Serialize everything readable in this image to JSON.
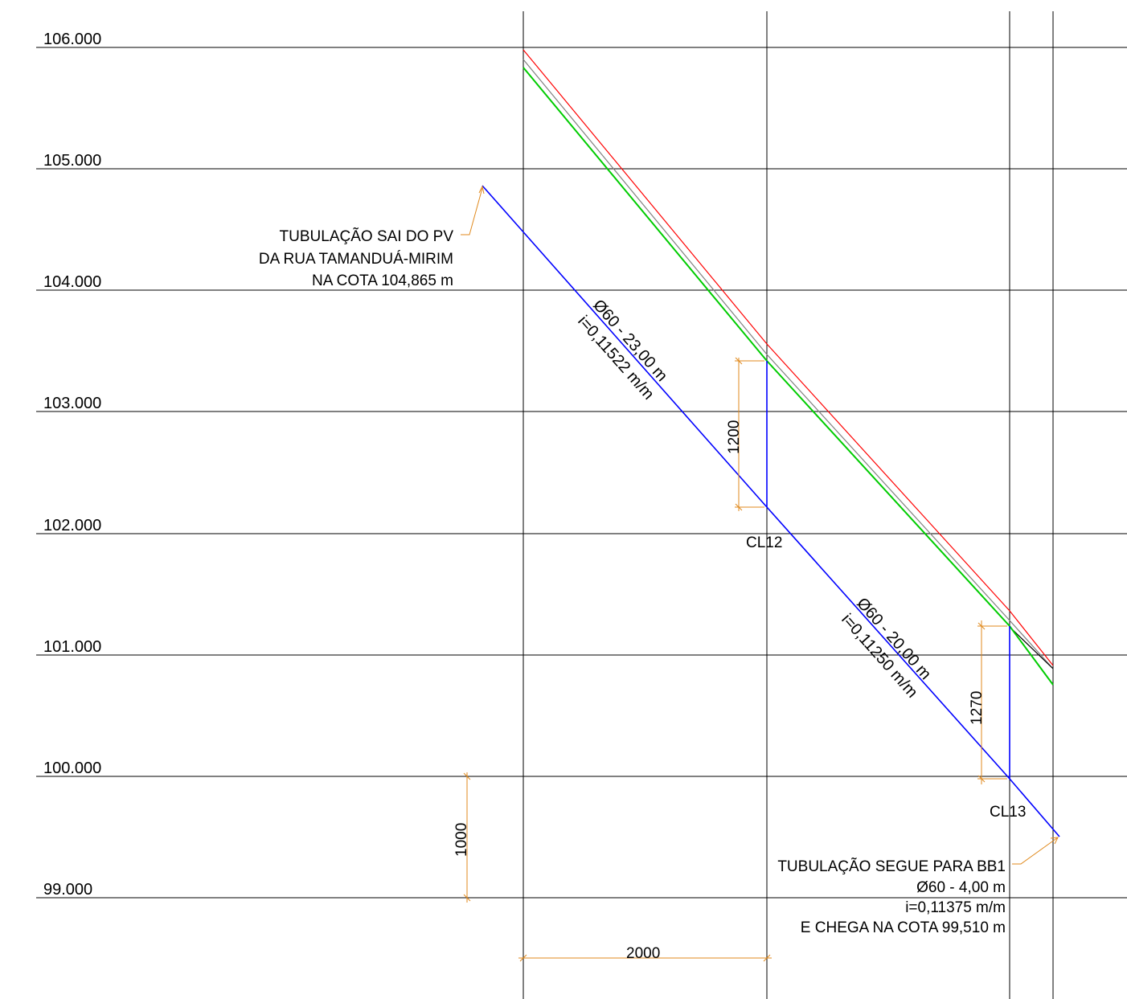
{
  "levels": {
    "l106": "106.000",
    "l105": "105.000",
    "l104": "104.000",
    "l103": "103.000",
    "l102": "102.000",
    "l101": "101.000",
    "l100": "100.000",
    "l99": "99.000"
  },
  "note_start": {
    "line1": "TUBULAÇÃO SAI DO PV",
    "line2": "DA RUA TAMANDUÁ-MIRIM",
    "line3": "NA COTA 104,865 m"
  },
  "note_end": {
    "line1": "TUBULAÇÃO SEGUE PARA BB1",
    "line2": "Ø60 - 4,00 m",
    "line3": "i=0,11375 m/m",
    "line4": "E CHEGA NA COTA 99,510 m"
  },
  "segments": {
    "seg1": {
      "diameter_length": "Ø60 - 23,00 m",
      "slope": "i=0,11522 m/m"
    },
    "seg2": {
      "diameter_length": "Ø60 - 20,00 m",
      "slope": "i=0,11250 m/m"
    }
  },
  "nodes": {
    "cl12": "CL12",
    "cl13": "CL13"
  },
  "dimensions": {
    "depth_cl12": "1200",
    "depth_cl13": "1270",
    "vertical_scale": "1000",
    "horizontal_scale": "2000"
  },
  "colors": {
    "pipe": "#0000ff",
    "terrain_red": "#ff0000",
    "terrain_gray": "#808080",
    "terrain_green": "#00cc00",
    "dimension": "#e08a1e",
    "grid": "#000000"
  }
}
